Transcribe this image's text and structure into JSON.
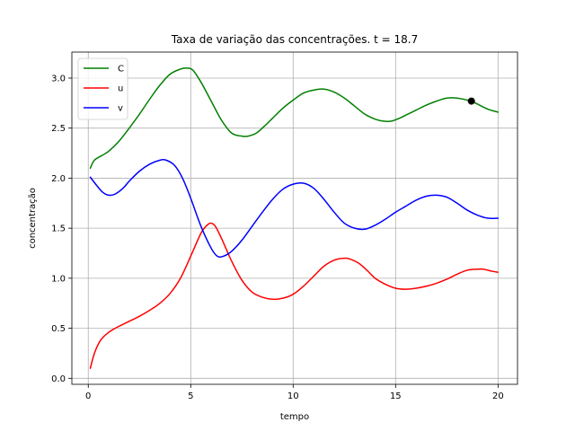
{
  "chart_data": {
    "type": "line",
    "title": "Taxa de variação das concentrações. t = 18.7",
    "xlabel": "tempo",
    "ylabel": "concentração",
    "xlim": [
      -0.8,
      20.95
    ],
    "ylim": [
      -0.06,
      3.26
    ],
    "xticks": [
      0,
      5,
      10,
      15,
      20
    ],
    "xtick_labels": [
      "0",
      "5",
      "10",
      "15",
      "20"
    ],
    "yticks": [
      0.0,
      0.5,
      1.0,
      1.5,
      2.0,
      2.5,
      3.0
    ],
    "ytick_labels": [
      "0.0",
      "0.5",
      "1.0",
      "1.5",
      "2.0",
      "2.5",
      "3.0"
    ],
    "grid": true,
    "legend": "top-left",
    "marker": {
      "x": 18.7,
      "y": 2.77,
      "series": "C",
      "color": "#000000"
    },
    "series": [
      {
        "name": "C",
        "color": "#008000",
        "x": [
          0.1,
          0.3,
          0.7,
          1.0,
          1.5,
          2.0,
          2.5,
          3.0,
          3.5,
          4.0,
          4.5,
          4.8,
          5.1,
          5.5,
          6.0,
          6.5,
          7.0,
          7.5,
          7.8,
          8.2,
          8.6,
          9.0,
          9.5,
          10.0,
          10.5,
          11.0,
          11.5,
          12.0,
          12.5,
          13.0,
          13.5,
          14.0,
          14.4,
          14.8,
          15.2,
          15.6,
          16.0,
          16.5,
          17.0,
          17.5,
          18.0,
          18.5,
          18.7,
          19.0,
          19.5,
          20.0
        ],
        "values": [
          2.1,
          2.18,
          2.23,
          2.27,
          2.37,
          2.5,
          2.64,
          2.79,
          2.93,
          3.04,
          3.09,
          3.1,
          3.08,
          2.96,
          2.77,
          2.58,
          2.45,
          2.42,
          2.42,
          2.45,
          2.52,
          2.6,
          2.7,
          2.78,
          2.85,
          2.88,
          2.89,
          2.86,
          2.8,
          2.72,
          2.64,
          2.59,
          2.57,
          2.57,
          2.6,
          2.64,
          2.68,
          2.73,
          2.77,
          2.8,
          2.8,
          2.78,
          2.77,
          2.74,
          2.69,
          2.66
        ]
      },
      {
        "name": "u",
        "color": "#ff0000",
        "x": [
          0.1,
          0.3,
          0.6,
          1.0,
          1.5,
          2.0,
          2.5,
          3.0,
          3.5,
          4.0,
          4.5,
          5.0,
          5.5,
          5.8,
          6.0,
          6.2,
          6.5,
          7.0,
          7.5,
          8.0,
          8.5,
          9.0,
          9.5,
          10.0,
          10.5,
          11.0,
          11.5,
          12.0,
          12.5,
          12.8,
          13.2,
          13.6,
          14.0,
          14.5,
          15.0,
          15.5,
          16.0,
          16.5,
          17.0,
          17.5,
          18.0,
          18.5,
          19.0,
          19.3,
          19.7,
          20.0
        ],
        "values": [
          0.1,
          0.25,
          0.38,
          0.46,
          0.52,
          0.57,
          0.62,
          0.68,
          0.75,
          0.85,
          1.0,
          1.22,
          1.45,
          1.53,
          1.55,
          1.52,
          1.4,
          1.17,
          0.98,
          0.86,
          0.81,
          0.79,
          0.8,
          0.84,
          0.92,
          1.02,
          1.12,
          1.18,
          1.2,
          1.19,
          1.15,
          1.08,
          1.0,
          0.94,
          0.9,
          0.89,
          0.9,
          0.92,
          0.95,
          0.99,
          1.04,
          1.08,
          1.09,
          1.09,
          1.07,
          1.06
        ]
      },
      {
        "name": "v",
        "color": "#0000ff",
        "x": [
          0.1,
          0.4,
          0.7,
          1.0,
          1.3,
          1.7,
          2.0,
          2.5,
          3.0,
          3.5,
          3.8,
          4.2,
          4.6,
          5.0,
          5.5,
          6.0,
          6.3,
          6.6,
          7.0,
          7.5,
          8.0,
          8.5,
          9.0,
          9.5,
          10.0,
          10.5,
          11.0,
          11.5,
          12.0,
          12.5,
          13.0,
          13.5,
          14.0,
          14.5,
          15.0,
          15.5,
          16.0,
          16.5,
          17.0,
          17.5,
          18.0,
          18.5,
          19.0,
          19.5,
          20.0
        ],
        "values": [
          2.01,
          1.93,
          1.86,
          1.83,
          1.84,
          1.9,
          1.97,
          2.07,
          2.14,
          2.18,
          2.18,
          2.13,
          2.0,
          1.8,
          1.52,
          1.3,
          1.22,
          1.22,
          1.27,
          1.38,
          1.52,
          1.66,
          1.79,
          1.89,
          1.94,
          1.95,
          1.9,
          1.79,
          1.66,
          1.55,
          1.5,
          1.49,
          1.53,
          1.59,
          1.66,
          1.72,
          1.78,
          1.82,
          1.83,
          1.81,
          1.75,
          1.68,
          1.63,
          1.6,
          1.6
        ]
      }
    ]
  }
}
